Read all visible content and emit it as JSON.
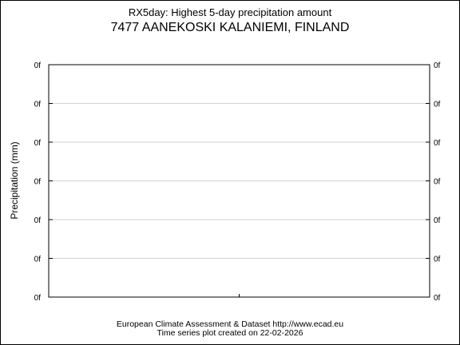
{
  "chart_data": {
    "type": "line",
    "title": "RX5day: Highest 5-day precipitation amount",
    "subtitle": "7477 AANEKOSKI KALANIEMI, FINLAND",
    "xlabel": "",
    "ylabel": "Precipitation (mm)",
    "y_tick_labels": [
      "0f",
      "0f",
      "0f",
      "0f",
      "0f",
      "0f",
      "0f"
    ],
    "x_tick_labels": [],
    "series": [],
    "grid": true,
    "grid_color": "#d3d3d3",
    "axis_color": "#000000"
  },
  "footer": {
    "line1": "European Climate Assessment & Dataset  http://www.ecad.eu",
    "line2": "Time series plot created on 22-02-2026"
  }
}
